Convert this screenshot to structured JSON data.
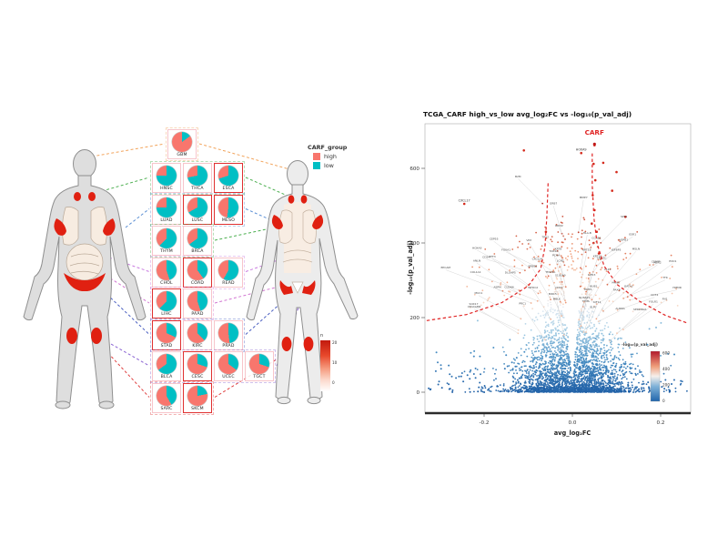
{
  "left_panel": {
    "legend": {
      "title": "CARF_group",
      "items": [
        {
          "label": "high",
          "color": "#F8766D"
        },
        {
          "label": "low",
          "color": "#00BFC4"
        }
      ]
    },
    "gradient_legend": {
      "title": "n",
      "ticks": [
        "20",
        "10",
        "0"
      ]
    },
    "rows": [
      {
        "line_color": "#F2A45C",
        "pies": [
          {
            "label": "GBM",
            "high": 0.85,
            "box": false
          }
        ]
      },
      {
        "line_color": "#4CAF50",
        "pies": [
          {
            "label": "HNSC",
            "high": 0.25,
            "box": false
          },
          {
            "label": "THCA",
            "high": 0.28,
            "box": false
          },
          {
            "label": "ESCA",
            "high": 0.3,
            "box": true
          }
        ]
      },
      {
        "line_color": "#5B8FD4",
        "pies": [
          {
            "label": "LUAD",
            "high": 0.25,
            "box": false
          },
          {
            "label": "LUSC",
            "high": 0.33,
            "box": true
          },
          {
            "label": "MESO",
            "high": 0.48,
            "box": true
          }
        ]
      },
      {
        "line_color": "#4CAF50",
        "pies": [
          {
            "label": "THYM",
            "high": 0.38,
            "box": false
          },
          {
            "label": "BRCA",
            "high": 0.35,
            "box": false
          }
        ]
      },
      {
        "line_color": "#C97BE0",
        "pies": [
          {
            "label": "CHOL",
            "high": 0.55,
            "box": false
          },
          {
            "label": "COAD",
            "high": 0.6,
            "box": true
          },
          {
            "label": "READ",
            "high": 0.42,
            "box": false
          }
        ]
      },
      {
        "line_color": "#D277D2",
        "pies": [
          {
            "label": "LIHC",
            "high": 0.38,
            "box": true
          },
          {
            "label": "PAAD",
            "high": 0.55,
            "box": false
          }
        ]
      },
      {
        "line_color": "#4A5FC1",
        "pies": [
          {
            "label": "STAD",
            "high": 0.68,
            "box": true
          },
          {
            "label": "KIRC",
            "high": 0.62,
            "box": false
          },
          {
            "label": "PRAD",
            "high": 0.52,
            "box": false
          }
        ]
      },
      {
        "line_color": "#8A63D2",
        "pies": [
          {
            "label": "BLCA",
            "high": 0.35,
            "box": false
          },
          {
            "label": "CESC",
            "high": 0.7,
            "box": true
          },
          {
            "label": "UCEC",
            "high": 0.65,
            "box": false
          },
          {
            "label": "TGCT",
            "high": 0.7,
            "box": false
          }
        ]
      },
      {
        "line_color": "#E04040",
        "pies": [
          {
            "label": "SARC",
            "high": 0.58,
            "box": false
          },
          {
            "label": "SKCM",
            "high": 0.78,
            "box": true
          }
        ]
      }
    ]
  },
  "volcano": {
    "title": "TCGA_CARF high_vs_low avg_log₂FC vs -log₁₀(p_val_adj)",
    "xlabel": "avg_log₂FC",
    "ylabel": "-log₁₀(p_val_adj)",
    "x_ticks": [
      "-0.2",
      "0.0",
      "0.2"
    ],
    "y_ticks": [
      "0",
      "200",
      "400",
      "600"
    ],
    "top_gene": "CARF",
    "highlight_color": "#E02424",
    "colorbar": {
      "title": "-log₁₀(p_val_adj)",
      "ticks": [
        "600",
        "400",
        "200",
        "0"
      ]
    },
    "gene_labels": [
      "SPP1",
      "KRT19",
      "MUC1",
      "CD74",
      "TFF3",
      "AGR2",
      "LCN2",
      "S100A9",
      "CEACAM6",
      "MMP7",
      "CXCL14",
      "IGFBP3",
      "COL1A1",
      "TIMP1",
      "SERPINA1",
      "FN1",
      "VIM",
      "HSPB1",
      "B2M",
      "HLA-B",
      "CD24",
      "EPCAM",
      "KRT8",
      "KRT18",
      "CLDN4",
      "SLPI",
      "WFDC2",
      "MSLN",
      "FOLR1",
      "PAX8",
      "SOX17",
      "GATA3",
      "FOXA1",
      "ESR1",
      "TFAP2A",
      "ERBB2",
      "GRB7",
      "MKI67",
      "TOP2A",
      "CCNB1",
      "BIRC5",
      "UBE2C",
      "AURKA",
      "PLK1",
      "CDK1",
      "CENPF",
      "ASPM",
      "KIF23",
      "ANLN",
      "TPX2",
      "PRC1",
      "NUSAP1",
      "DLGAP5",
      "HMMR",
      "CEP55",
      "KIF11",
      "BUB1",
      "TTK",
      "MELK",
      "EXO1",
      "RRM2",
      "TYMS",
      "PCNA",
      "HOXA9"
    ],
    "red_labeled_points": [
      {
        "name": "CXCL17",
        "x": -0.245,
        "v": 505
      },
      {
        "name": "HOXA9",
        "x": 0.02,
        "v": 641
      }
    ],
    "red_points": [
      {
        "x": 0.05,
        "v": 662
      },
      {
        "x": 0.048,
        "v": 612
      },
      {
        "x": 0.052,
        "v": 568
      },
      {
        "x": 0.046,
        "v": 528
      },
      {
        "x": 0.05,
        "v": 488
      },
      {
        "x": 0.044,
        "v": 452
      },
      {
        "x": 0.055,
        "v": 430
      },
      {
        "x": 0.048,
        "v": 400
      },
      {
        "x": 0.06,
        "v": 372
      },
      {
        "x": 0.07,
        "v": 615
      },
      {
        "x": 0.1,
        "v": 590
      },
      {
        "x": 0.09,
        "v": 540
      },
      {
        "x": 0.12,
        "v": 470
      },
      {
        "x": -0.06,
        "v": 430
      },
      {
        "x": -0.11,
        "v": 648
      }
    ]
  },
  "chart_data": [
    {
      "type": "pie",
      "title": "CARF_group proportion by TCGA tumor type (body map)",
      "legend": [
        "high",
        "low"
      ],
      "colors": {
        "high": "#F8766D",
        "low": "#00BFC4"
      },
      "series": [
        {
          "label": "GBM",
          "high": 0.85,
          "low": 0.15
        },
        {
          "label": "HNSC",
          "high": 0.25,
          "low": 0.75
        },
        {
          "label": "THCA",
          "high": 0.28,
          "low": 0.72
        },
        {
          "label": "ESCA",
          "high": 0.3,
          "low": 0.7
        },
        {
          "label": "LUAD",
          "high": 0.25,
          "low": 0.75
        },
        {
          "label": "LUSC",
          "high": 0.33,
          "low": 0.67
        },
        {
          "label": "MESO",
          "high": 0.48,
          "low": 0.52
        },
        {
          "label": "THYM",
          "high": 0.38,
          "low": 0.62
        },
        {
          "label": "BRCA",
          "high": 0.35,
          "low": 0.65
        },
        {
          "label": "CHOL",
          "high": 0.55,
          "low": 0.45
        },
        {
          "label": "COAD",
          "high": 0.6,
          "low": 0.4
        },
        {
          "label": "READ",
          "high": 0.42,
          "low": 0.58
        },
        {
          "label": "LIHC",
          "high": 0.38,
          "low": 0.62
        },
        {
          "label": "PAAD",
          "high": 0.55,
          "low": 0.45
        },
        {
          "label": "STAD",
          "high": 0.68,
          "low": 0.32
        },
        {
          "label": "KIRC",
          "high": 0.62,
          "low": 0.38
        },
        {
          "label": "PRAD",
          "high": 0.52,
          "low": 0.48
        },
        {
          "label": "BLCA",
          "high": 0.35,
          "low": 0.65
        },
        {
          "label": "CESC",
          "high": 0.7,
          "low": 0.3
        },
        {
          "label": "UCEC",
          "high": 0.65,
          "low": 0.35
        },
        {
          "label": "TGCT",
          "high": 0.7,
          "low": 0.3
        },
        {
          "label": "SARC",
          "high": 0.58,
          "low": 0.42
        },
        {
          "label": "SKCM",
          "high": 0.78,
          "low": 0.22
        }
      ],
      "highlighted_red_box": [
        "ESCA",
        "LUSC",
        "MESO",
        "COAD",
        "LIHC",
        "STAD",
        "CESC",
        "SKCM"
      ]
    },
    {
      "type": "scatter",
      "title": "TCGA_CARF high_vs_low avg_log₂FC vs -log₁₀(p_val_adj)",
      "xlabel": "avg_log₂FC",
      "ylabel": "-log₁₀(p_val_adj)",
      "xlim": [
        -0.34,
        0.27
      ],
      "ylim": [
        0,
        730
      ],
      "x_ticks": [
        -0.2,
        0.0,
        0.2
      ],
      "y_ticks": [
        0,
        200,
        400,
        600
      ],
      "legend_position": "right-inside",
      "grid": false,
      "colorbar": {
        "title": "-log₁₀(p_val_adj)",
        "ticks": [
          0,
          200,
          400,
          600
        ],
        "low": "#2166AC",
        "mid": "#F7F7F7",
        "high": "#B2182B"
      },
      "top_point": {
        "name": "CARF",
        "x": 0.05,
        "y": 690,
        "color": "#E02424"
      },
      "threshold": "two red dashed hyperbolic significance curves descending from center toward lower corners",
      "shape": "dense blue point mass around x=0 with white inverted-V notch; point color encodes -log10(p_val_adj) from blue (0) to red (600+)"
    }
  ]
}
